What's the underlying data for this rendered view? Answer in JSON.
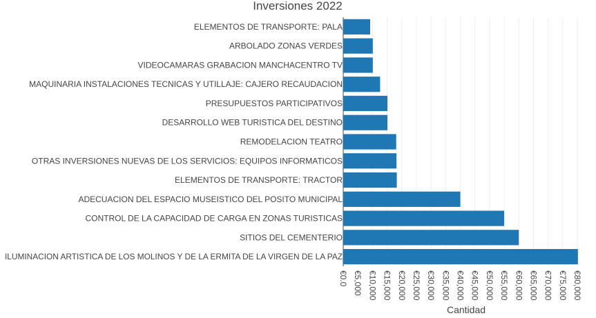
{
  "chart_data": {
    "type": "bar",
    "orientation": "horizontal",
    "title": "Inversiones 2022",
    "xlabel": "Cantidad",
    "ylabel": "",
    "xlim": [
      0,
      80000
    ],
    "tick_values": [
      0,
      5000,
      10000,
      15000,
      20000,
      25000,
      30000,
      35000,
      40000,
      45000,
      50000,
      55000,
      60000,
      65000,
      70000,
      75000,
      80000
    ],
    "tick_labels": [
      "€0.0",
      "€5,000",
      "€10,000",
      "€15,000",
      "€20,000",
      "€25,000",
      "€30,000",
      "€35,000",
      "€40,000",
      "€45,000",
      "€50,000",
      "€55,000",
      "€60,000",
      "€65,000",
      "€70,000",
      "€75,000",
      "€80,000"
    ],
    "categories": [
      "ELEMENTOS DE TRANSPORTE: PALA",
      "ARBOLADO ZONAS VERDES",
      "VIDEOCAMARAS GRABACION MANCHACENTRO TV",
      "MAQUINARIA INSTALACIONES TECNICAS Y UTILLAJE: CAJERO RECAUDACION",
      "PRESUPUESTOS PARTICIPATIVOS",
      "DESARROLLO WEB TURISTICA DEL DESTINO",
      "REMODELACION TEATRO",
      "OTRAS INVERSIONES NUEVAS DE LOS SERVICIOS: EQUIPOS INFORMATICOS",
      "ELEMENTOS DE TRANSPORTE: TRACTOR",
      "ADECUACION DEL ESPACIO MUSEISTICO DEL POSITO MUNICIPAL",
      "CONTROL DE LA CAPACIDAD DE CARGA EN ZONAS TURISTICAS",
      "SITIOS DEL CEMENTERIO",
      "ILUMINACION ARTISTICA DE LOS MOLINOS Y DE LA ERMITA DE LA VIRGEN DE LA PAZ"
    ],
    "values": [
      9200,
      10100,
      10100,
      12600,
      15100,
      15100,
      18100,
      18200,
      18300,
      40000,
      55000,
      60000,
      80200
    ],
    "bar_color": "#1f77b4",
    "grid": true,
    "legend": "none"
  }
}
